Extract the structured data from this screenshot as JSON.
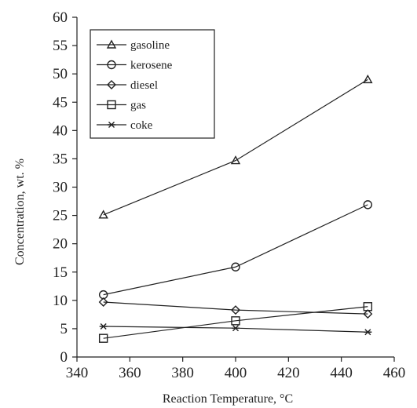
{
  "chart_data": {
    "type": "line",
    "xlabel": "Reaction Temperature, °C",
    "ylabel": "Concentration, wt. %",
    "xlim": [
      340,
      460
    ],
    "ylim": [
      0,
      60
    ],
    "xticks": [
      340,
      360,
      380,
      400,
      420,
      440,
      460
    ],
    "yticks": [
      0,
      5,
      10,
      15,
      20,
      25,
      30,
      35,
      40,
      45,
      50,
      55,
      60
    ],
    "x": [
      350,
      400,
      450
    ],
    "grid": false,
    "legend_position": "top-left",
    "series": [
      {
        "name": "gasoline",
        "marker": "triangle",
        "values": [
          25.1,
          34.7,
          49.0
        ]
      },
      {
        "name": "kerosene",
        "marker": "circle",
        "values": [
          11.0,
          15.9,
          26.9
        ]
      },
      {
        "name": "diesel",
        "marker": "diamond",
        "values": [
          9.7,
          8.3,
          7.6
        ]
      },
      {
        "name": "gas",
        "marker": "square",
        "values": [
          3.3,
          6.4,
          8.9
        ]
      },
      {
        "name": "coke",
        "marker": "asterisk",
        "values": [
          5.4,
          5.1,
          4.4
        ]
      }
    ],
    "colors": {
      "line": "#222222",
      "background": "#ffffff"
    }
  }
}
